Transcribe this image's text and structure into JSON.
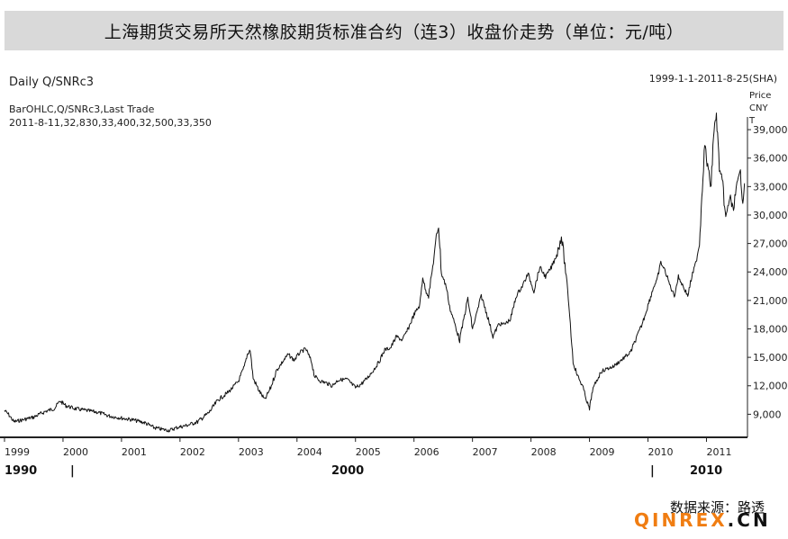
{
  "title": "上海期货交易所天然橡胶期货标准合约（连3）收盘价走势（单位：元/吨）",
  "source_label": "数据来源：路透",
  "watermark": {
    "part1": "QINREX",
    "part2": ".CN",
    "color": "#f07d12"
  },
  "chart_data": {
    "type": "line",
    "title": "Daily Q/SNRc3",
    "date_range": "1999-1-1-2011-8-25(SHA)",
    "legend_line1": "BarOHLC,Q/SNRc3,Last Trade",
    "legend_line2": "2011-8-11,32,830,33,400,32,500,33,350",
    "ylabel": [
      "Price",
      "CNY",
      "T"
    ],
    "ylim": [
      6000,
      41000
    ],
    "yticks": [
      9000,
      12000,
      15000,
      18000,
      21000,
      24000,
      27000,
      30000,
      33000,
      36000,
      39000
    ],
    "ytick_labels": [
      "9,000",
      "12,000",
      "15,000",
      "18,000",
      "21,000",
      "24,000",
      "27,000",
      "30,000",
      "33,000",
      "36,000",
      "39,000"
    ],
    "xlim": [
      1999.0,
      2011.67
    ],
    "xtick_labels": [
      "1999",
      "2000",
      "2001",
      "2002",
      "2003",
      "2004",
      "2005",
      "2006",
      "2007",
      "2008",
      "2009",
      "2010",
      "2011"
    ],
    "era_labels": [
      "1990",
      "|",
      "2000",
      "|",
      "2010"
    ],
    "last_value": 33350,
    "series": [
      {
        "x": [
          1999.0,
          1999.08,
          1999.16,
          1999.3,
          1999.5,
          1999.7,
          1999.85,
          1999.95,
          2000.05,
          2000.2,
          2000.4,
          2000.6,
          2000.8,
          2001.0,
          2001.2,
          2001.4,
          2001.55,
          2001.7,
          2001.82,
          2001.95,
          2002.1,
          2002.3,
          2002.5,
          2002.65,
          2002.8,
          2002.9,
          2003.0,
          2003.1,
          2003.15,
          2003.2,
          2003.25,
          2003.35,
          2003.45,
          2003.55,
          2003.65,
          2003.75,
          2003.85,
          2003.95,
          2004.05,
          2004.15,
          2004.25,
          2004.3,
          2004.4,
          2004.5,
          2004.6,
          2004.7,
          2004.85,
          2005.0,
          2005.1,
          2005.2,
          2005.3,
          2005.4,
          2005.5,
          2005.6,
          2005.7,
          2005.8,
          2005.9,
          2006.0,
          2006.1,
          2006.15,
          2006.2,
          2006.25,
          2006.32,
          2006.38,
          2006.42,
          2006.47,
          2006.55,
          2006.62,
          2006.7,
          2006.78,
          2006.85,
          2006.92,
          2007.0,
          2007.08,
          2007.15,
          2007.25,
          2007.35,
          2007.45,
          2007.55,
          2007.65,
          2007.75,
          2007.85,
          2007.95,
          2008.05,
          2008.15,
          2008.25,
          2008.35,
          2008.45,
          2008.52,
          2008.58,
          2008.65,
          2008.72,
          2008.8,
          2008.88,
          2008.95,
          2009.0,
          2009.05,
          2009.12,
          2009.2,
          2009.3,
          2009.4,
          2009.5,
          2009.6,
          2009.7,
          2009.8,
          2009.9,
          2010.0,
          2010.1,
          2010.15,
          2010.22,
          2010.3,
          2010.38,
          2010.45,
          2010.52,
          2010.6,
          2010.68,
          2010.75,
          2010.82,
          2010.88,
          2010.92,
          2010.97,
          2011.02,
          2011.08,
          2011.12,
          2011.17,
          2011.22,
          2011.28,
          2011.33,
          2011.4,
          2011.45,
          2011.52,
          2011.58,
          2011.62,
          2011.65
        ],
        "y": [
          9400,
          8900,
          8200,
          8400,
          8700,
          9300,
          9600,
          10400,
          9900,
          9600,
          9400,
          9200,
          8800,
          8600,
          8400,
          8100,
          7600,
          7400,
          7300,
          7600,
          7800,
          8200,
          9200,
          10500,
          11200,
          11800,
          12500,
          14000,
          15300,
          15800,
          12800,
          11500,
          10500,
          11800,
          13600,
          14500,
          15300,
          14700,
          15500,
          15900,
          14500,
          13000,
          12500,
          12300,
          12000,
          12600,
          12700,
          11800,
          12200,
          12800,
          13600,
          14500,
          15800,
          16000,
          17200,
          16800,
          18000,
          19500,
          20500,
          23500,
          22000,
          21500,
          24500,
          27500,
          29000,
          23800,
          22500,
          20000,
          18500,
          16800,
          19000,
          21200,
          18000,
          19800,
          21500,
          19500,
          17200,
          18500,
          18500,
          19000,
          21500,
          22500,
          23800,
          22000,
          24500,
          23500,
          24500,
          26000,
          27800,
          24800,
          20500,
          14500,
          13000,
          12000,
          10500,
          9500,
          11500,
          12500,
          13500,
          13800,
          14000,
          14500,
          15000,
          15500,
          17000,
          18500,
          20500,
          22500,
          23000,
          25000,
          24000,
          22500,
          21500,
          23500,
          22500,
          21500,
          23500,
          25000,
          27000,
          32000,
          37500,
          35000,
          33000,
          38500,
          40500,
          35000,
          33000,
          29500,
          32000,
          30500,
          33000,
          34500,
          31500,
          33350
        ]
      }
    ]
  }
}
